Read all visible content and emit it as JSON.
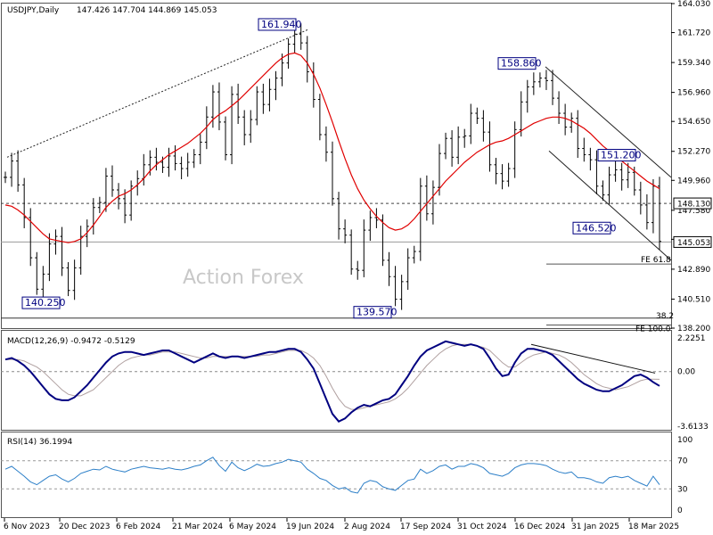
{
  "header": {
    "symbol": "USDJPY,Daily",
    "ohlc": "147.426 147.704 144.869 145.053"
  },
  "watermark": "Action Forex",
  "colors": {
    "price": "#000000",
    "sma": "#e00000",
    "macd": "#000080",
    "signal": "#b0a0a0",
    "rsi": "#2c7fc8",
    "labels": "#000080"
  },
  "chart_data": [
    {
      "type": "bar",
      "title": "USDJPY,Daily",
      "ylim": [
        138.2,
        164.03
      ],
      "y_ticks": [
        "164.030",
        "161.720",
        "159.340",
        "156.960",
        "154.650",
        "152.270",
        "149.960",
        "147.580",
        "145.270",
        "142.890",
        "140.510",
        "138.200"
      ],
      "x_ticks": [
        "6 Nov 2023",
        "20 Dec 2023",
        "6 Feb 2024",
        "21 Mar 2024",
        "6 May 2024",
        "19 Jun 2024",
        "2 Aug 2024",
        "17 Sep 2024",
        "31 Oct 2024",
        "16 Dec 2024",
        "31 Jan 2025",
        "18 Mar 2025"
      ],
      "last_price": "145.053",
      "level_line": "148.130",
      "annotations": [
        "161.940",
        "158.860",
        "151.200",
        "146.520",
        "140.250",
        "139.570"
      ],
      "fib_labels": [
        "FE 61.8",
        "38.2",
        "FE 100.0"
      ],
      "series": [
        {
          "name": "",
          "values": [
            150.2,
            151.5,
            149.6,
            147.0,
            143.8,
            141.3,
            142.5,
            144.9,
            145.5,
            143.0,
            141.2,
            143.0,
            145.5,
            146.3,
            147.8,
            148.2,
            150.3,
            149.2,
            148.5,
            147.2,
            149.5,
            150.1,
            151.2,
            151.8,
            151.4,
            151.0,
            151.9,
            151.3,
            150.9,
            151.4,
            152.0,
            153.0,
            155.0,
            157.0,
            154.6,
            152.0,
            156.8,
            155.0,
            153.6,
            154.8,
            157.0,
            156.0,
            157.2,
            158.1,
            159.3,
            160.8,
            161.6,
            160.9,
            158.6,
            156.4,
            153.6,
            152.2,
            148.5,
            146.1,
            145.6,
            142.9,
            142.8,
            146.0,
            147.0,
            146.8,
            143.6,
            142.3,
            140.5,
            141.9,
            143.8,
            144.3,
            149.5,
            147.3,
            149.4,
            152.1,
            153.3,
            151.8,
            153.4,
            153.5,
            155.3,
            154.9,
            153.8,
            151.2,
            150.5,
            149.9,
            150.9,
            154.0,
            156.2,
            157.4,
            157.8,
            158.1,
            157.9,
            156.5,
            155.3,
            154.2,
            154.9,
            152.5,
            152.0,
            151.6,
            149.5,
            148.8,
            150.4,
            150.8,
            150.0,
            150.6,
            149.2,
            148.0,
            146.6,
            149.5,
            145.1
          ]
        },
        {
          "name": "",
          "values": [
            148.0,
            147.9,
            147.6,
            147.2,
            146.7,
            146.2,
            145.7,
            145.3,
            145.2,
            145.1,
            145.0,
            145.1,
            145.3,
            145.8,
            146.4,
            147.1,
            147.8,
            148.3,
            148.7,
            148.9,
            149.2,
            149.6,
            150.1,
            150.7,
            151.2,
            151.6,
            152.0,
            152.3,
            152.6,
            152.9,
            153.3,
            153.7,
            154.2,
            154.8,
            155.2,
            155.5,
            155.9,
            156.3,
            156.8,
            157.3,
            157.8,
            158.3,
            158.8,
            159.3,
            159.7,
            160.0,
            160.1,
            159.9,
            159.3,
            158.4,
            157.3,
            156.0,
            154.6,
            153.1,
            151.7,
            150.4,
            149.3,
            148.4,
            147.7,
            147.1,
            146.6,
            146.2,
            146.0,
            146.1,
            146.4,
            146.9,
            147.5,
            148.1,
            148.7,
            149.3,
            149.9,
            150.4,
            150.9,
            151.4,
            151.8,
            152.2,
            152.5,
            152.8,
            153.0,
            153.1,
            153.3,
            153.6,
            153.9,
            154.2,
            154.5,
            154.7,
            154.9,
            155.0,
            155.0,
            154.9,
            154.7,
            154.4,
            154.1,
            153.7,
            153.2,
            152.7,
            152.3,
            151.9,
            151.5,
            151.1,
            150.7,
            150.3,
            149.9,
            149.6,
            149.3
          ]
        }
      ]
    },
    {
      "type": "line",
      "title": "MACD(12,26,9) -0.9472 -0.5129",
      "ylim": [
        -3.6133,
        2.2251
      ],
      "y_ticks": [
        "2.2251",
        "0.00",
        "-3.6133"
      ],
      "series": [
        {
          "name": "",
          "values": [
            0.8,
            0.9,
            0.7,
            0.4,
            0.0,
            -0.5,
            -1.0,
            -1.5,
            -1.8,
            -1.9,
            -1.9,
            -1.7,
            -1.3,
            -0.9,
            -0.4,
            0.1,
            0.6,
            1.0,
            1.2,
            1.3,
            1.3,
            1.2,
            1.1,
            1.2,
            1.3,
            1.4,
            1.4,
            1.2,
            1.0,
            0.8,
            0.6,
            0.8,
            1.0,
            1.2,
            1.0,
            0.9,
            1.0,
            1.0,
            0.9,
            1.0,
            1.1,
            1.2,
            1.3,
            1.3,
            1.4,
            1.5,
            1.5,
            1.3,
            0.8,
            0.2,
            -0.8,
            -1.8,
            -2.8,
            -3.3,
            -3.1,
            -2.7,
            -2.4,
            -2.2,
            -2.3,
            -2.1,
            -1.9,
            -1.8,
            -1.5,
            -0.9,
            -0.3,
            0.4,
            1.0,
            1.4,
            1.6,
            1.8,
            2.0,
            1.9,
            1.8,
            1.7,
            1.8,
            1.7,
            1.5,
            0.9,
            0.2,
            -0.3,
            -0.2,
            0.6,
            1.2,
            1.5,
            1.5,
            1.4,
            1.3,
            1.1,
            0.7,
            0.3,
            -0.1,
            -0.5,
            -0.8,
            -1.0,
            -1.2,
            -1.3,
            -1.3,
            -1.1,
            -0.9,
            -0.6,
            -0.3,
            -0.2,
            -0.4,
            -0.7,
            -0.95
          ]
        },
        {
          "name": "",
          "values": [
            0.8,
            0.8,
            0.8,
            0.7,
            0.5,
            0.3,
            0.0,
            -0.4,
            -0.8,
            -1.2,
            -1.5,
            -1.6,
            -1.6,
            -1.4,
            -1.2,
            -0.8,
            -0.4,
            0.0,
            0.4,
            0.7,
            0.9,
            1.0,
            1.1,
            1.1,
            1.2,
            1.3,
            1.3,
            1.3,
            1.2,
            1.1,
            1.0,
            0.9,
            0.9,
            1.0,
            1.0,
            1.0,
            1.0,
            1.0,
            1.0,
            1.0,
            1.0,
            1.1,
            1.1,
            1.2,
            1.3,
            1.4,
            1.4,
            1.4,
            1.2,
            0.9,
            0.4,
            -0.3,
            -1.1,
            -1.8,
            -2.3,
            -2.5,
            -2.5,
            -2.4,
            -2.3,
            -2.2,
            -2.1,
            -2.0,
            -1.8,
            -1.5,
            -1.1,
            -0.6,
            -0.1,
            0.4,
            0.8,
            1.2,
            1.5,
            1.7,
            1.8,
            1.8,
            1.8,
            1.7,
            1.6,
            1.4,
            1.0,
            0.6,
            0.3,
            0.3,
            0.6,
            0.9,
            1.1,
            1.2,
            1.3,
            1.2,
            1.1,
            0.9,
            0.6,
            0.2,
            -0.2,
            -0.5,
            -0.8,
            -1.0,
            -1.1,
            -1.2,
            -1.1,
            -1.0,
            -0.8,
            -0.6,
            -0.5,
            -0.5,
            -0.51
          ]
        }
      ]
    },
    {
      "type": "line",
      "title": "RSI(14) 36.1994",
      "ylim": [
        0,
        100
      ],
      "y_ticks": [
        "100",
        "70",
        "30",
        "0"
      ],
      "series": [
        {
          "name": "",
          "values": [
            58,
            62,
            55,
            48,
            40,
            36,
            42,
            48,
            50,
            44,
            40,
            45,
            52,
            55,
            58,
            57,
            62,
            58,
            56,
            54,
            58,
            60,
            62,
            60,
            59,
            58,
            60,
            58,
            57,
            59,
            62,
            64,
            70,
            75,
            63,
            55,
            68,
            60,
            56,
            60,
            65,
            62,
            63,
            66,
            68,
            72,
            70,
            68,
            58,
            52,
            45,
            42,
            35,
            30,
            32,
            26,
            24,
            38,
            42,
            40,
            33,
            30,
            28,
            35,
            42,
            44,
            58,
            52,
            56,
            62,
            64,
            58,
            62,
            62,
            66,
            64,
            60,
            52,
            50,
            48,
            52,
            60,
            64,
            66,
            66,
            65,
            63,
            58,
            54,
            52,
            54,
            46,
            46,
            44,
            40,
            38,
            46,
            48,
            46,
            48,
            42,
            38,
            34,
            48,
            36
          ]
        }
      ]
    }
  ]
}
